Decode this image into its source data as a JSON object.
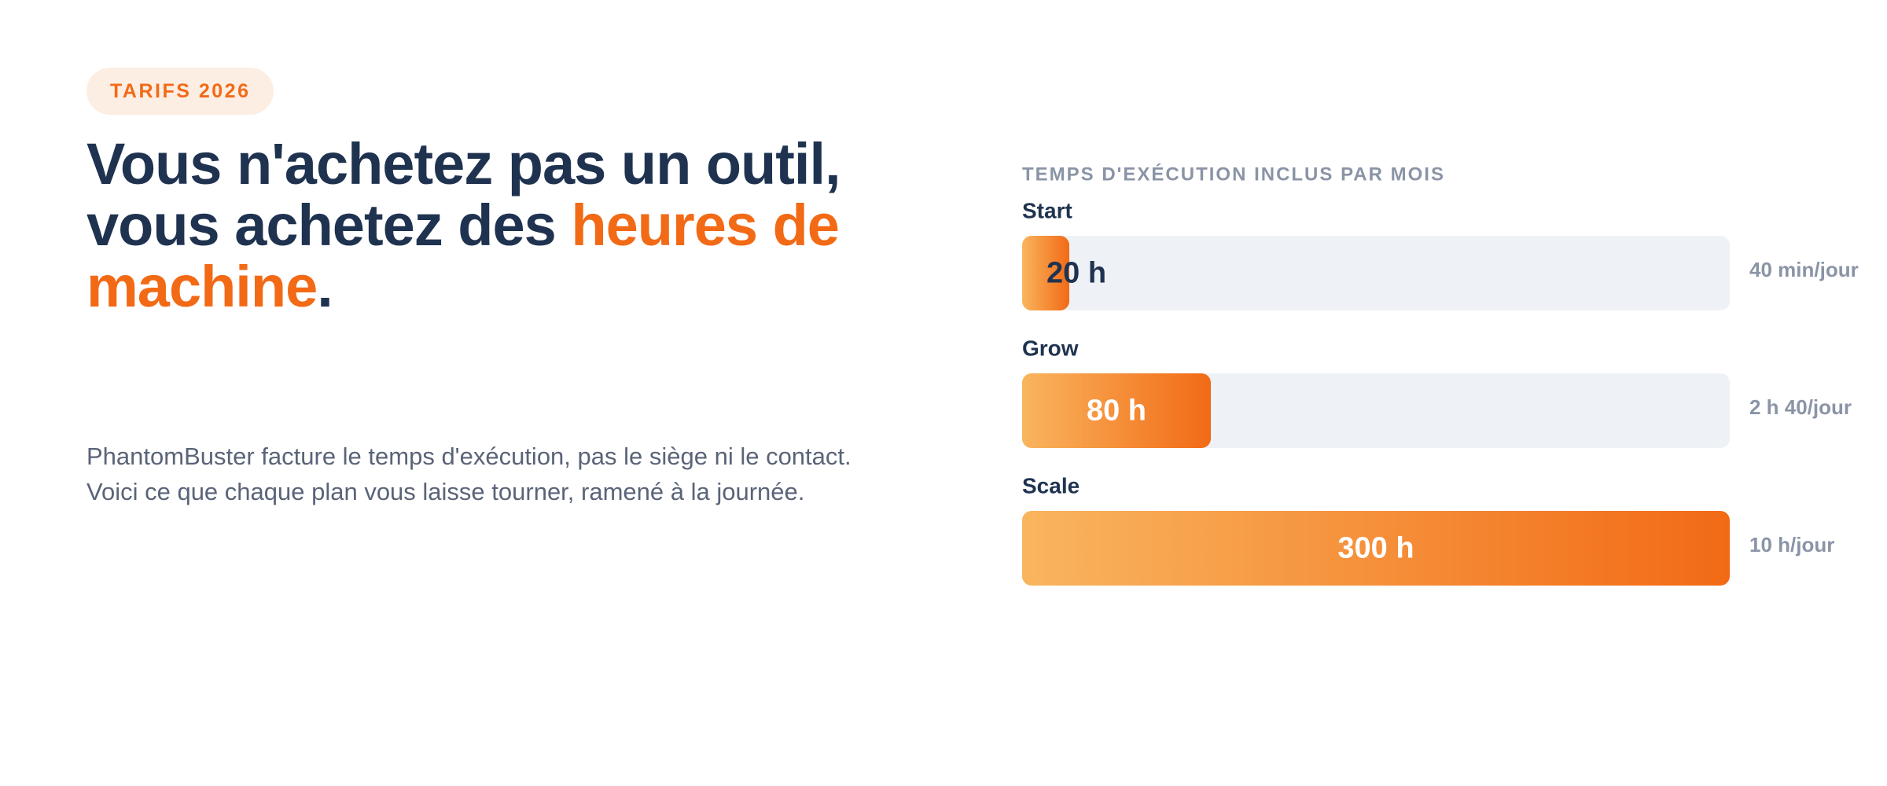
{
  "badge": "TARIFS 2026",
  "headline": {
    "parts": [
      "Vous n'achetez pas un outil, vous achetez des ",
      "heures de machine",
      "."
    ]
  },
  "body": "PhantomBuster facture le temps d'exécution, pas le siège ni le contact. Voici ce que chaque plan vous laisse tourner, ramené à la journée.",
  "chart_data": {
    "type": "bar",
    "orientation": "horizontal",
    "title": "TEMPS D'EXÉCUTION INCLUS PAR MOIS",
    "categories": [
      "Start",
      "Grow",
      "Scale"
    ],
    "values": [
      20,
      80,
      300
    ],
    "value_labels": [
      "20 h",
      "80 h",
      "300 h"
    ],
    "annotations": [
      "40 min/jour",
      "2 h 40/jour",
      "10 h/jour"
    ],
    "xlim": [
      0,
      300
    ],
    "colors": [
      "#f9b55e",
      "#f26a16"
    ]
  }
}
